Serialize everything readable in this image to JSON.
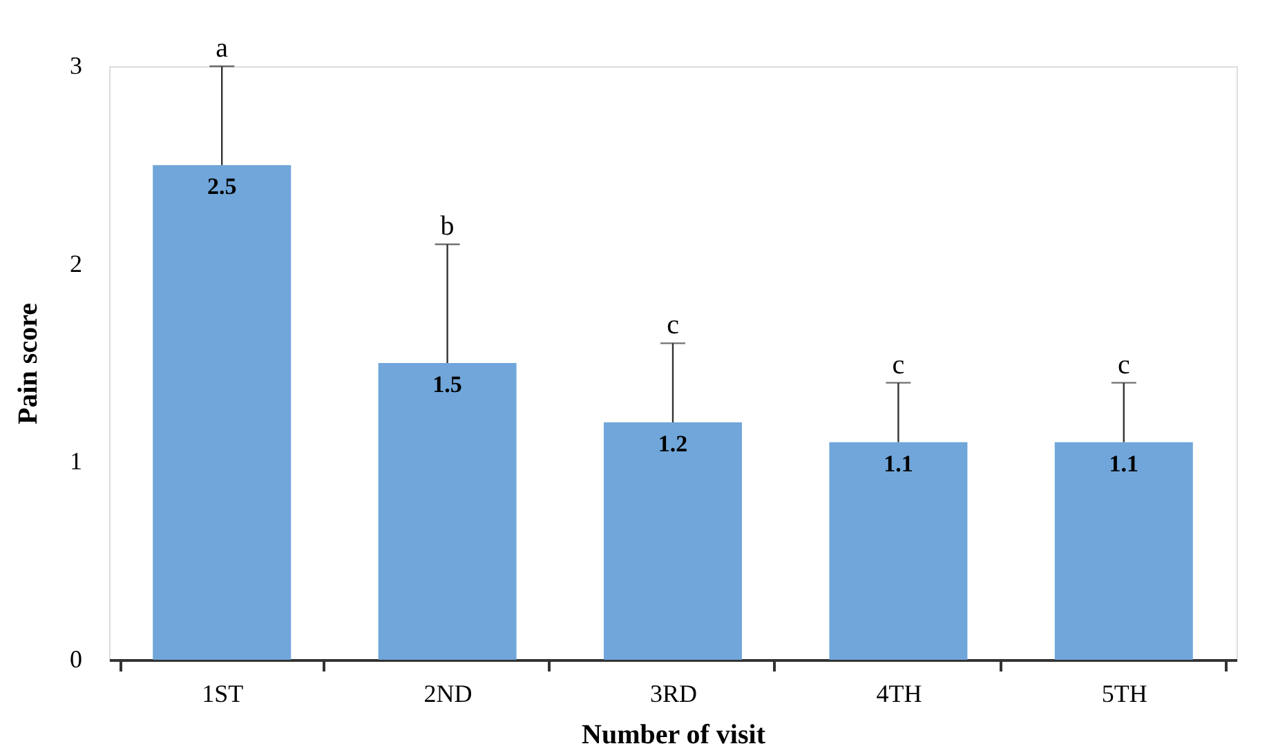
{
  "chart_data": {
    "type": "bar",
    "xlabel": "Number of visit",
    "ylabel": "Pain score",
    "categories": [
      "1ST",
      "2ND",
      "3RD",
      "4TH",
      "5TH"
    ],
    "values": [
      2.5,
      1.5,
      1.2,
      1.1,
      1.1
    ],
    "color": "#70a6da",
    "errors": [
      [
        2.5,
        3.0
      ],
      [
        1.5,
        2.1
      ],
      [
        1.2,
        1.6
      ],
      [
        1.1,
        1.4
      ],
      [
        1.1,
        1.4
      ]
    ],
    "data_labels": true,
    "annotations": [
      {
        "text": "a",
        "x": "1ST",
        "y": 3.0
      },
      {
        "text": "b",
        "x": "2ND",
        "y": 2.1
      },
      {
        "text": "c",
        "x": "3RD",
        "y": 1.6
      },
      {
        "text": "c",
        "x": "4TH",
        "y": 1.4
      },
      {
        "text": "c",
        "x": "5TH",
        "y": 1.4
      }
    ],
    "ylim": [
      0,
      3
    ],
    "yticks": [
      0,
      1,
      2,
      3
    ],
    "grid": false
  }
}
